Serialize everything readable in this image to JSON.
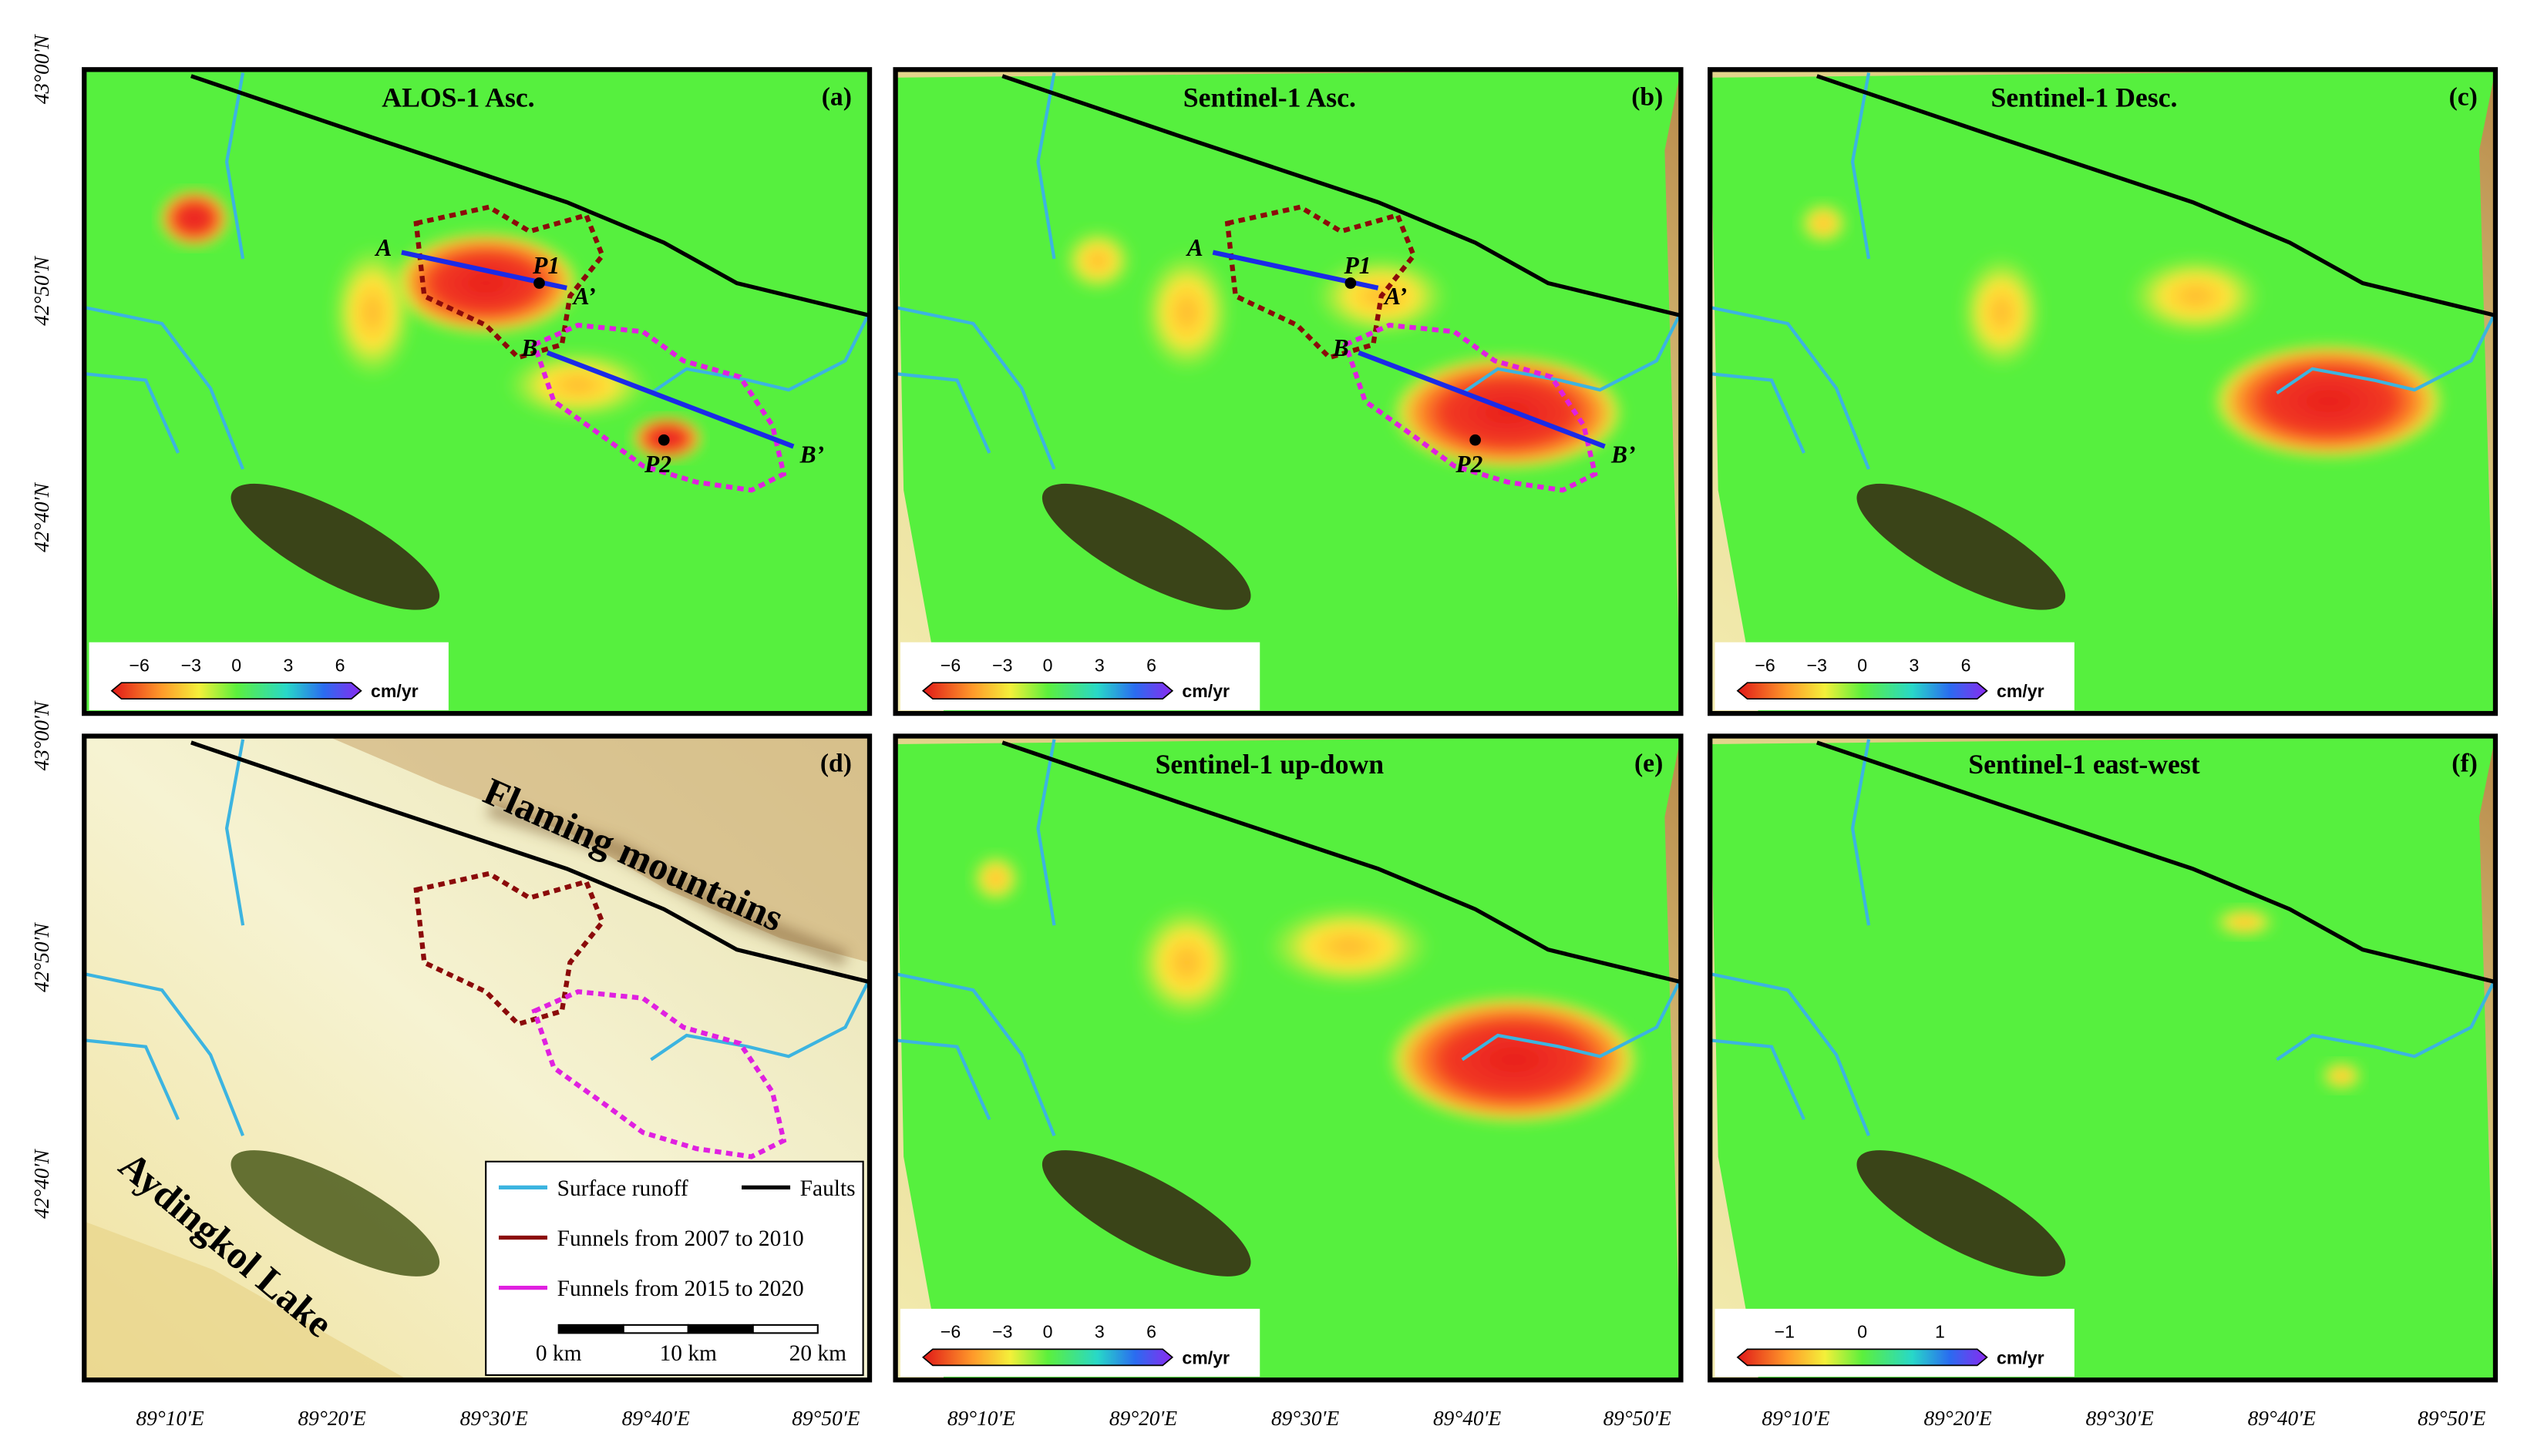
{
  "panels": [
    {
      "title": "ALOS-1 Asc.",
      "letter": "(a)",
      "colorbar": {
        "ticks": [
          "−6",
          "−3",
          "0",
          "3",
          "6"
        ],
        "unit": "cm/yr"
      },
      "profiles": [
        {
          "start": "A",
          "end": "A’"
        },
        {
          "start": "B",
          "end": "B’"
        }
      ],
      "points": [
        "P1",
        "P2"
      ]
    },
    {
      "title": "Sentinel-1 Asc.",
      "letter": "(b)",
      "colorbar": {
        "ticks": [
          "−6",
          "−3",
          "0",
          "3",
          "6"
        ],
        "unit": "cm/yr"
      },
      "profiles": [
        {
          "start": "A",
          "end": "A’"
        },
        {
          "start": "B",
          "end": "B’"
        }
      ],
      "points": [
        "P1",
        "P2"
      ]
    },
    {
      "title": "Sentinel-1 Desc.",
      "letter": "(c)",
      "colorbar": {
        "ticks": [
          "−6",
          "−3",
          "0",
          "3",
          "6"
        ],
        "unit": "cm/yr"
      }
    },
    {
      "letter": "(d)"
    },
    {
      "title": "Sentinel-1 up-down",
      "letter": "(e)",
      "colorbar": {
        "ticks": [
          "−6",
          "−3",
          "0",
          "3",
          "6"
        ],
        "unit": "cm/yr"
      }
    },
    {
      "title": "Sentinel-1 east-west",
      "letter": "(f)",
      "colorbar": {
        "ticks": [
          "−1",
          "0",
          "1"
        ],
        "unit": "cm/yr"
      }
    }
  ],
  "x_axis": {
    "labels": [
      "89°10′E",
      "89°20′E",
      "89°30′E",
      "89°40′E",
      "89°50′E"
    ]
  },
  "y_axis": {
    "labels": [
      "43°00′N",
      "42°50′N",
      "42°40′N"
    ]
  },
  "legend": {
    "entries": [
      "Surface runoff",
      "Faults",
      "Funnels from 2007 to 2010",
      "Funnels from 2015 to 2020"
    ]
  },
  "scale_bar": {
    "labels": [
      "0 km",
      "10 km",
      "20 km"
    ]
  },
  "place_labels": [
    "Flaming mountains",
    "Aydingkol Lake"
  ]
}
